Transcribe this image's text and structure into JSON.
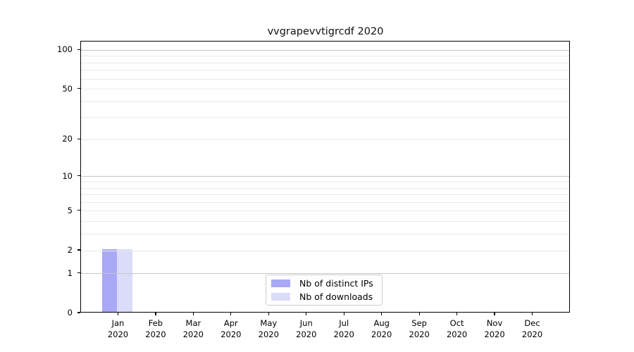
{
  "chart_data": {
    "type": "bar",
    "title": "vvgrapevvtigrcdf 2020",
    "categories": [
      "Jan 2020",
      "Feb 2020",
      "Mar 2020",
      "Apr 2020",
      "May 2020",
      "Jun 2020",
      "Jul 2020",
      "Aug 2020",
      "Sep 2020",
      "Oct 2020",
      "Nov 2020",
      "Dec 2020"
    ],
    "series": [
      {
        "name": "Nb of distinct IPs",
        "color": "#a8a8f7",
        "values": [
          2,
          0,
          0,
          0,
          0,
          0,
          0,
          0,
          0,
          0,
          0,
          0
        ]
      },
      {
        "name": "Nb of downloads",
        "color": "#dbdbfa",
        "values": [
          2,
          0,
          0,
          0,
          0,
          0,
          0,
          0,
          0,
          0,
          0,
          0
        ]
      }
    ],
    "yscale": "log1p",
    "ylim": [
      0,
      116
    ],
    "yticks_labeled": [
      0,
      1,
      2,
      5,
      10,
      20,
      50,
      100
    ],
    "gridlines_major": [
      1,
      10,
      100
    ],
    "gridlines_minor": [
      2,
      3,
      4,
      5,
      6,
      7,
      8,
      9,
      20,
      30,
      40,
      50,
      60,
      70,
      80,
      90
    ],
    "grid": true,
    "xlabel": "",
    "ylabel": "",
    "legend_position": "bottom-center",
    "colors": {
      "axis": "#000000",
      "grid_major": "#c6c6c6",
      "grid_minor": "#e9e9e9",
      "legend_border": "#cccccc"
    }
  }
}
